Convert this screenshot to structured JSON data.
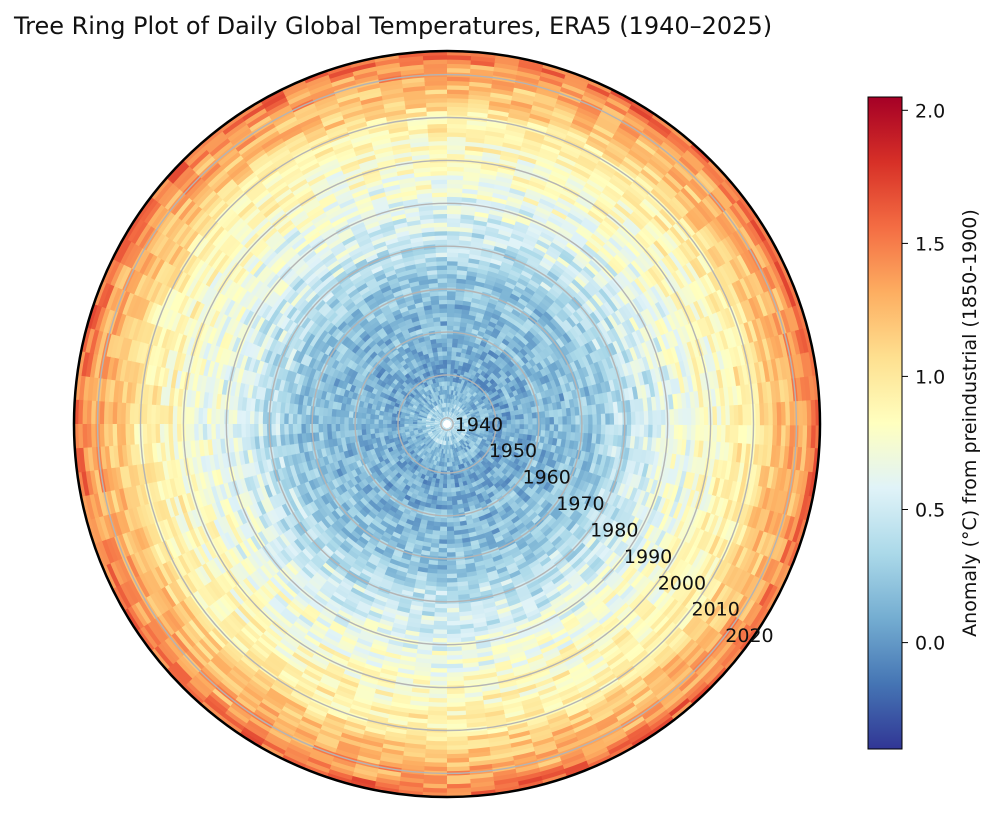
{
  "chart_data": {
    "type": "heatmap",
    "subtype": "polar-tree-ring",
    "title": "Tree Ring Plot of Daily Global Temperatures, ERA5 (1940–2025)",
    "years": [
      1940,
      2025
    ],
    "year_ring_labels": [
      "1940",
      "1950",
      "1960",
      "1970",
      "1980",
      "1990",
      "2000",
      "2010",
      "2020"
    ],
    "colorbar": {
      "label": "Anomaly (°C) from preindustrial (1850-1900)",
      "colormap": "RdYlBu_r",
      "range": [
        -0.4,
        2.05
      ],
      "ticks": [
        "0.0",
        "0.5",
        "1.0",
        "1.5",
        "2.0"
      ]
    },
    "annual_mean_anomaly": [
      {
        "year": 1940,
        "value": 0.35
      },
      {
        "year": 1950,
        "value": 0.12
      },
      {
        "year": 1960,
        "value": 0.15
      },
      {
        "year": 1970,
        "value": 0.22
      },
      {
        "year": 1980,
        "value": 0.42
      },
      {
        "year": 1990,
        "value": 0.62
      },
      {
        "year": 2000,
        "value": 0.78
      },
      {
        "year": 2010,
        "value": 1.0
      },
      {
        "year": 2020,
        "value": 1.3
      },
      {
        "year": 2025,
        "value": 1.55
      }
    ],
    "grid": true
  },
  "colors": {
    "outer_ring": "#000000",
    "grid_rings": "#b4b4b4"
  }
}
